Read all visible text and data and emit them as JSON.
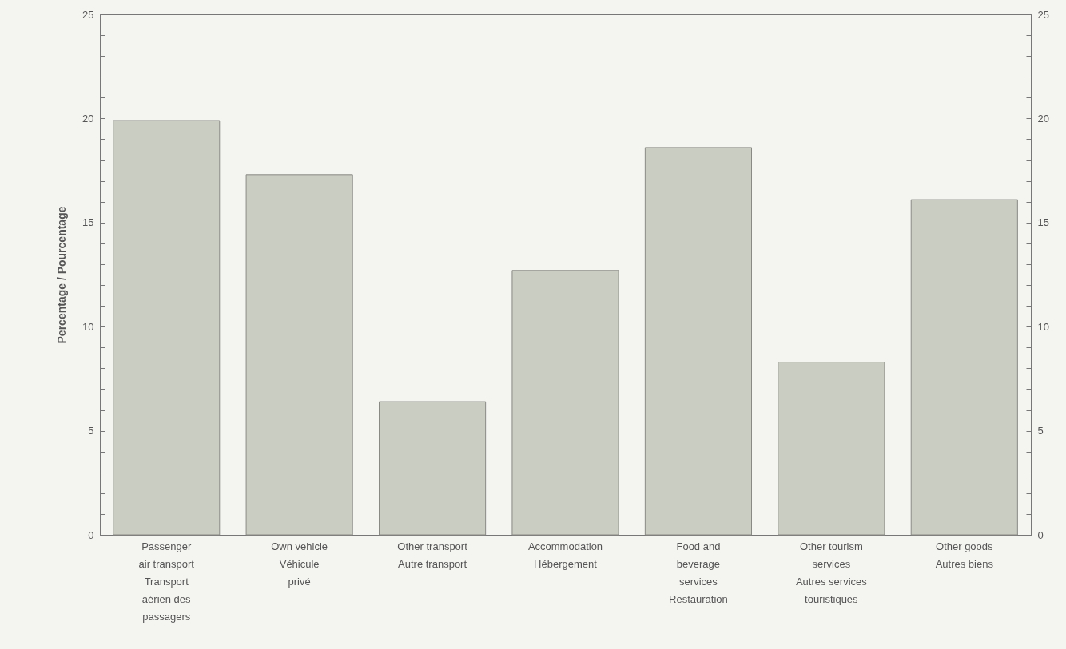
{
  "chart_data": {
    "type": "bar",
    "ylabel": "Percentage / Pourcentage",
    "categories": [
      "Passenger\nair transport\n\nTransport\naérien des\npassagers",
      "Own vehicle\n\n\nVéhicule\nprivé",
      "Other transport\n\n\nAutre transport",
      "Accommodation\n\n\nHébergement",
      "Food and\nbeverage\nservices\nRestauration",
      "Other tourism\nservices\n\nAutres services\ntouristiques",
      "Other goods\n\n\nAutres biens"
    ],
    "values": [
      19.9,
      17.3,
      6.4,
      12.7,
      18.6,
      8.3,
      16.1
    ],
    "color": "#c9cdc2",
    "ylim": [
      0,
      25
    ],
    "yticks": [
      0,
      {
        "value": 1,
        "label": null
      },
      {
        "value": 2,
        "label": null
      },
      {
        "value": 3,
        "label": null
      },
      {
        "value": 4,
        "label": null
      },
      5,
      {
        "value": 6,
        "label": null
      },
      {
        "value": 7,
        "label": null
      },
      {
        "value": 8,
        "label": null
      },
      {
        "value": 9,
        "label": null
      },
      10,
      {
        "value": 11,
        "label": null
      },
      {
        "value": 12,
        "label": null
      },
      {
        "value": 13,
        "label": null
      },
      {
        "value": 14,
        "label": null
      },
      15,
      {
        "value": 16,
        "label": null
      },
      {
        "value": 17,
        "label": null
      },
      {
        "value": 18,
        "label": null
      },
      {
        "value": 19,
        "label": null
      },
      20,
      {
        "value": 21,
        "label": null
      },
      {
        "value": 22,
        "label": null
      },
      {
        "value": 23,
        "label": null
      },
      {
        "value": 24,
        "label": null
      },
      25
    ],
    "y2lim": [
      0,
      25
    ],
    "y2ticks": [
      0,
      {
        "value": 1,
        "label": null
      },
      {
        "value": 2,
        "label": null
      },
      {
        "value": 3,
        "label": null
      },
      {
        "value": 4,
        "label": null
      },
      5,
      {
        "value": 6,
        "label": null
      },
      {
        "value": 7,
        "label": null
      },
      {
        "value": 8,
        "label": null
      },
      {
        "value": 9,
        "label": null
      },
      10,
      {
        "value": 11,
        "label": null
      },
      {
        "value": 12,
        "label": null
      },
      {
        "value": 13,
        "label": null
      },
      {
        "value": 14,
        "label": null
      },
      15,
      {
        "value": 16,
        "label": null
      },
      {
        "value": 17,
        "label": null
      },
      {
        "value": 18,
        "label": null
      },
      {
        "value": 19,
        "label": null
      },
      20,
      {
        "value": 21,
        "label": null
      },
      {
        "value": 22,
        "label": null
      },
      {
        "value": 23,
        "label": null
      },
      {
        "value": 24,
        "label": null
      },
      25
    ]
  }
}
